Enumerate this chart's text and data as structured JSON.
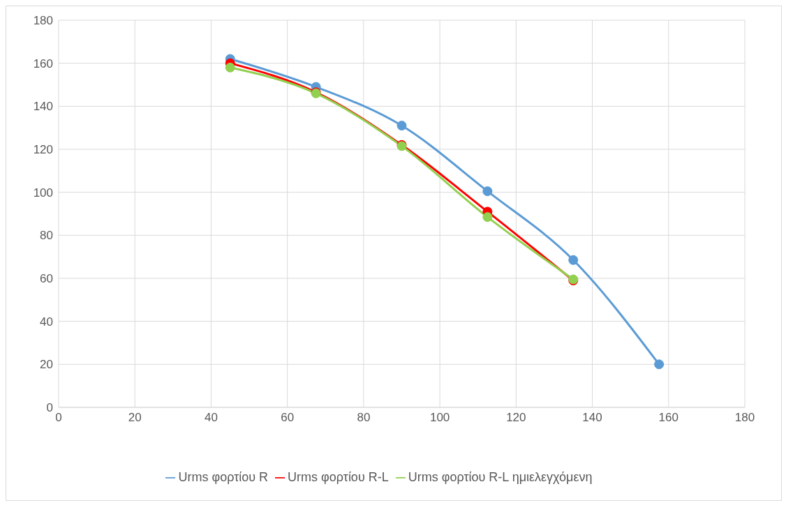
{
  "chart_data": {
    "type": "line",
    "x": [
      45,
      67.5,
      90,
      112.5,
      135,
      157.5
    ],
    "series": [
      {
        "name": "Urms φορτίου R",
        "color": "#5b9bd5",
        "values": [
          162,
          149,
          131,
          100.5,
          68.5,
          20
        ]
      },
      {
        "name": "Urms φορτίου R-L",
        "color": "#ff0000",
        "values": [
          160,
          146.5,
          122,
          91,
          59,
          null
        ]
      },
      {
        "name": "Urms φορτίου R-L ημιελεγχόμενη",
        "color": "#92d050",
        "values": [
          158,
          146,
          121.5,
          88.5,
          59.5,
          null
        ]
      }
    ],
    "xlim": [
      0,
      180
    ],
    "xticks": [
      0,
      20,
      40,
      60,
      80,
      100,
      120,
      140,
      160,
      180
    ],
    "ylim": [
      0,
      180
    ],
    "yticks": [
      0,
      20,
      40,
      60,
      80,
      100,
      120,
      140,
      160,
      180
    ],
    "grid": true,
    "legend": "bottom",
    "marker": "circle",
    "line_style": "solid"
  }
}
